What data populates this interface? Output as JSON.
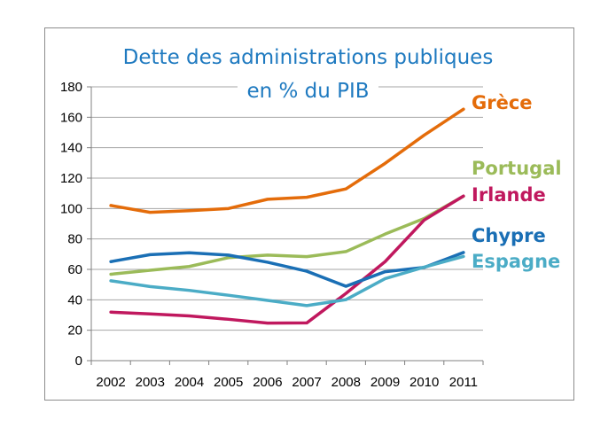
{
  "chart_data": {
    "type": "line",
    "title": "Dette des administrations publiques",
    "subtitle": "en % du PIB",
    "xlabel": "",
    "ylabel": "",
    "x": [
      "2002",
      "2003",
      "2004",
      "2005",
      "2006",
      "2007",
      "2008",
      "2009",
      "2010",
      "2011"
    ],
    "ylim": [
      0,
      180
    ],
    "yticks": [
      0,
      20,
      40,
      60,
      80,
      100,
      120,
      140,
      160,
      180
    ],
    "grid": true,
    "legend": "labels at line ends (right)",
    "series": [
      {
        "name": "Grèce",
        "color": "#e46c0a",
        "values": [
          102,
          97.5,
          98.6,
          100,
          106.1,
          107.4,
          112.9,
          129.7,
          148.3,
          165.3
        ]
      },
      {
        "name": "Portugal",
        "color": "#9bbb59",
        "values": [
          56.8,
          59.4,
          61.9,
          67.7,
          69.4,
          68.4,
          71.7,
          83.2,
          93.5,
          108.1
        ]
      },
      {
        "name": "Irlande",
        "color": "#c0185e",
        "values": [
          31.9,
          30.7,
          29.4,
          27.2,
          24.7,
          24.8,
          44.2,
          65.1,
          92.5,
          108.2
        ]
      },
      {
        "name": "Chypre",
        "color": "#1a6fb5",
        "values": [
          65.1,
          69.7,
          70.9,
          69.4,
          64.7,
          58.8,
          48.9,
          58.5,
          61.3,
          71.1
        ]
      },
      {
        "name": "Espagne",
        "color": "#4bacc6",
        "values": [
          52.5,
          48.7,
          46.2,
          43.0,
          39.6,
          36.2,
          40.1,
          53.9,
          61.5,
          68.5
        ]
      }
    ]
  }
}
